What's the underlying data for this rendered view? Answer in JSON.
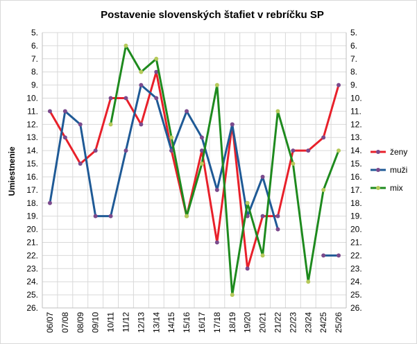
{
  "chart_data": {
    "type": "line",
    "title": "Postavenie slovenských štafiet v rebríčku SP",
    "ylabel": "Umiestnenie",
    "xlabel": "",
    "categories": [
      "06/07",
      "07/08",
      "08/09",
      "09/10",
      "10/11",
      "11/12",
      "12/13",
      "13/14",
      "14/15",
      "15/16",
      "16/17",
      "17/18",
      "18/19",
      "19/20",
      "20/21",
      "21/22",
      "22/23",
      "23/24",
      "24/25",
      "25/26"
    ],
    "ylim": [
      5,
      26
    ],
    "y_reversed": true,
    "y_tick_format": "N.",
    "y_ticks": [
      "5.",
      "6.",
      "7.",
      "8.",
      "9.",
      "10.",
      "11.",
      "12.",
      "13.",
      "14.",
      "15.",
      "16.",
      "17.",
      "18.",
      "19.",
      "20.",
      "21.",
      "22.",
      "23.",
      "24.",
      "25.",
      "26."
    ],
    "grid": true,
    "legend_position": "right",
    "series": [
      {
        "name": "ženy",
        "color": "#e8202a",
        "marker_color": "#7b4a8c",
        "values": [
          11,
          13,
          15,
          14,
          10,
          10,
          12,
          8,
          14,
          19,
          14,
          21,
          12,
          23,
          19,
          19,
          14,
          14,
          13,
          9
        ]
      },
      {
        "name": "muži",
        "color": "#1f5a96",
        "marker_color": "#7b4a8c",
        "values": [
          18,
          11,
          12,
          19,
          19,
          14,
          9,
          10,
          14,
          11,
          13,
          17,
          12,
          19,
          16,
          20,
          null,
          null,
          22,
          22
        ]
      },
      {
        "name": "mix",
        "color": "#1e8a1e",
        "marker_color": "#b5c95a",
        "values": [
          null,
          null,
          null,
          null,
          12,
          6,
          8,
          7,
          13,
          19,
          15,
          9,
          25,
          18,
          22,
          11,
          15,
          24,
          17,
          14
        ]
      }
    ]
  }
}
